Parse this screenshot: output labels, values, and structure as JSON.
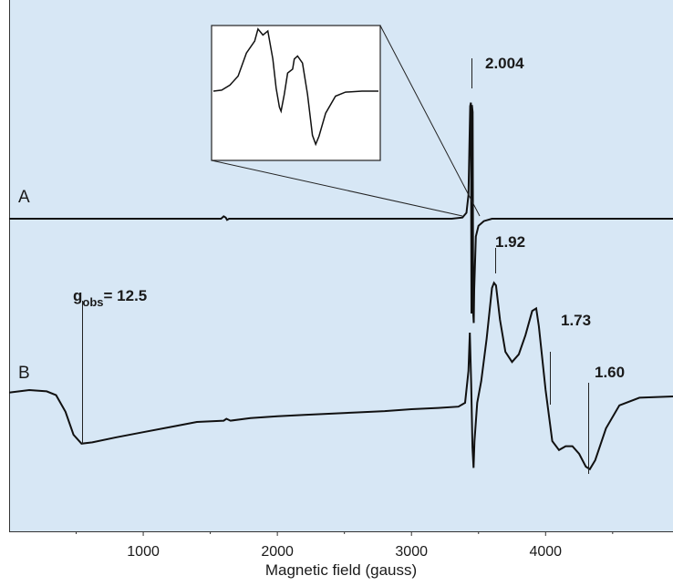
{
  "chart_data": {
    "type": "line",
    "xlabel": "Magnetic field (gauss)",
    "ylabel": "",
    "xlim": [
      0,
      4950
    ],
    "x_ticks": [
      1000,
      2000,
      3000,
      4000
    ],
    "x_tick_labels": [
      "1000",
      "2000",
      "3000",
      "4000"
    ],
    "background_color": "#d7e7f5",
    "grid": false,
    "series": [
      {
        "name": "A",
        "points": [
          [
            0,
            0.0
          ],
          [
            1580,
            0.0
          ],
          [
            1600,
            0.2
          ],
          [
            1615,
            0.1
          ],
          [
            1625,
            -0.1
          ],
          [
            1640,
            0.0
          ],
          [
            3300,
            0.0
          ],
          [
            3380,
            0.1
          ],
          [
            3410,
            0.5
          ],
          [
            3425,
            2.0
          ],
          [
            3438,
            9.5
          ],
          [
            3443,
            9.8
          ],
          [
            3447,
            -8.0
          ],
          [
            3451,
            9.6
          ],
          [
            3456,
            9.0
          ],
          [
            3460,
            -8.0
          ],
          [
            3464,
            -8.8
          ],
          [
            3468,
            -6.0
          ],
          [
            3480,
            -1.5
          ],
          [
            3500,
            -0.6
          ],
          [
            3540,
            -0.2
          ],
          [
            3600,
            0.0
          ],
          [
            4950,
            0.0
          ]
        ]
      },
      {
        "name": "B",
        "points": [
          [
            0,
            0.3
          ],
          [
            150,
            0.5
          ],
          [
            280,
            0.4
          ],
          [
            350,
            0.1
          ],
          [
            420,
            -1.2
          ],
          [
            480,
            -3.0
          ],
          [
            540,
            -3.7
          ],
          [
            620,
            -3.6
          ],
          [
            800,
            -3.2
          ],
          [
            1000,
            -2.8
          ],
          [
            1200,
            -2.4
          ],
          [
            1400,
            -2.0
          ],
          [
            1600,
            -1.9
          ],
          [
            1620,
            -1.75
          ],
          [
            1650,
            -1.9
          ],
          [
            1800,
            -1.7
          ],
          [
            2000,
            -1.55
          ],
          [
            2200,
            -1.45
          ],
          [
            2400,
            -1.35
          ],
          [
            2600,
            -1.25
          ],
          [
            2800,
            -1.15
          ],
          [
            3000,
            -1.0
          ],
          [
            3200,
            -0.9
          ],
          [
            3350,
            -0.8
          ],
          [
            3400,
            -0.5
          ],
          [
            3425,
            2.0
          ],
          [
            3435,
            5.0
          ],
          [
            3445,
            1.0
          ],
          [
            3455,
            -4.0
          ],
          [
            3463,
            -5.6
          ],
          [
            3470,
            -3.5
          ],
          [
            3490,
            -0.5
          ],
          [
            3520,
            1.2
          ],
          [
            3560,
            4.5
          ],
          [
            3600,
            8.5
          ],
          [
            3615,
            8.9
          ],
          [
            3630,
            8.7
          ],
          [
            3660,
            6.0
          ],
          [
            3700,
            3.5
          ],
          [
            3750,
            2.7
          ],
          [
            3800,
            3.3
          ],
          [
            3850,
            4.8
          ],
          [
            3900,
            6.7
          ],
          [
            3930,
            6.9
          ],
          [
            3950,
            5.5
          ],
          [
            4000,
            0.5
          ],
          [
            4050,
            -3.5
          ],
          [
            4100,
            -4.2
          ],
          [
            4150,
            -3.9
          ],
          [
            4200,
            -3.9
          ],
          [
            4250,
            -4.5
          ],
          [
            4300,
            -5.5
          ],
          [
            4330,
            -5.7
          ],
          [
            4370,
            -5.0
          ],
          [
            4450,
            -2.5
          ],
          [
            4550,
            -0.7
          ],
          [
            4700,
            -0.1
          ],
          [
            4950,
            0.0
          ]
        ]
      }
    ],
    "annotations": [
      {
        "text": "2.004"
      },
      {
        "text": "1.92"
      },
      {
        "text": "1.73"
      },
      {
        "text": "1.60"
      },
      {
        "text_main": "g",
        "text_sub": "obs",
        "text_tail": "= 12.5"
      }
    ],
    "inset": {
      "points": [
        [
          0,
          0.0
        ],
        [
          5,
          0.1
        ],
        [
          10,
          0.6
        ],
        [
          15,
          1.5
        ],
        [
          20,
          3.8
        ],
        [
          25,
          5.0
        ],
        [
          27,
          6.2
        ],
        [
          30,
          5.6
        ],
        [
          33,
          6.0
        ],
        [
          36,
          3.2
        ],
        [
          38,
          0.3
        ],
        [
          40,
          -1.6
        ],
        [
          41,
          -2.0
        ],
        [
          43,
          -0.3
        ],
        [
          45,
          1.8
        ],
        [
          48,
          2.2
        ],
        [
          49,
          3.2
        ],
        [
          51,
          3.5
        ],
        [
          54,
          2.8
        ],
        [
          57,
          -0.3
        ],
        [
          60,
          -4.4
        ],
        [
          62,
          -5.3
        ],
        [
          64,
          -4.5
        ],
        [
          68,
          -2.2
        ],
        [
          74,
          -0.5
        ],
        [
          80,
          -0.1
        ],
        [
          90,
          0.0
        ],
        [
          100,
          0.0
        ]
      ]
    }
  }
}
